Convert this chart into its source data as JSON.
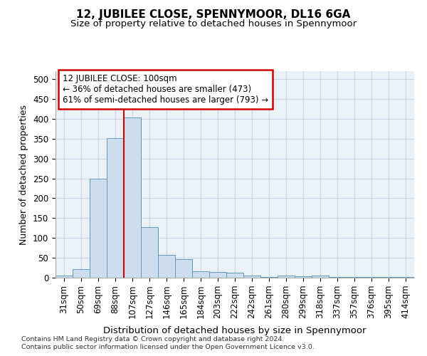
{
  "title": "12, JUBILEE CLOSE, SPENNYMOOR, DL16 6GA",
  "subtitle": "Size of property relative to detached houses in Spennymoor",
  "xlabel": "Distribution of detached houses by size in Spennymoor",
  "ylabel": "Number of detached properties",
  "footnote1": "Contains HM Land Registry data © Crown copyright and database right 2024.",
  "footnote2": "Contains public sector information licensed under the Open Government Licence v3.0.",
  "categories": [
    "31sqm",
    "50sqm",
    "69sqm",
    "88sqm",
    "107sqm",
    "127sqm",
    "146sqm",
    "165sqm",
    "184sqm",
    "203sqm",
    "222sqm",
    "242sqm",
    "261sqm",
    "280sqm",
    "299sqm",
    "318sqm",
    "337sqm",
    "357sqm",
    "376sqm",
    "395sqm",
    "414sqm"
  ],
  "values": [
    5,
    22,
    250,
    352,
    403,
    128,
    58,
    47,
    17,
    14,
    12,
    6,
    1,
    6,
    4,
    6,
    1,
    1,
    2,
    1,
    2
  ],
  "bar_color": "#ccdded",
  "bar_edge_color": "#6699bb",
  "grid_color": "#c8d8e8",
  "background_color": "#eaf2f8",
  "property_line_x": 3.5,
  "annotation_text1": "12 JUBILEE CLOSE: 100sqm",
  "annotation_text2": "← 36% of detached houses are smaller (473)",
  "annotation_text3": "61% of semi-detached houses are larger (793) →",
  "annotation_box_color": "#ffffff",
  "annotation_box_edge": "#cc0000",
  "red_line_color": "#cc0000",
  "ylim": [
    0,
    520
  ],
  "yticks": [
    0,
    50,
    100,
    150,
    200,
    250,
    300,
    350,
    400,
    450,
    500
  ]
}
